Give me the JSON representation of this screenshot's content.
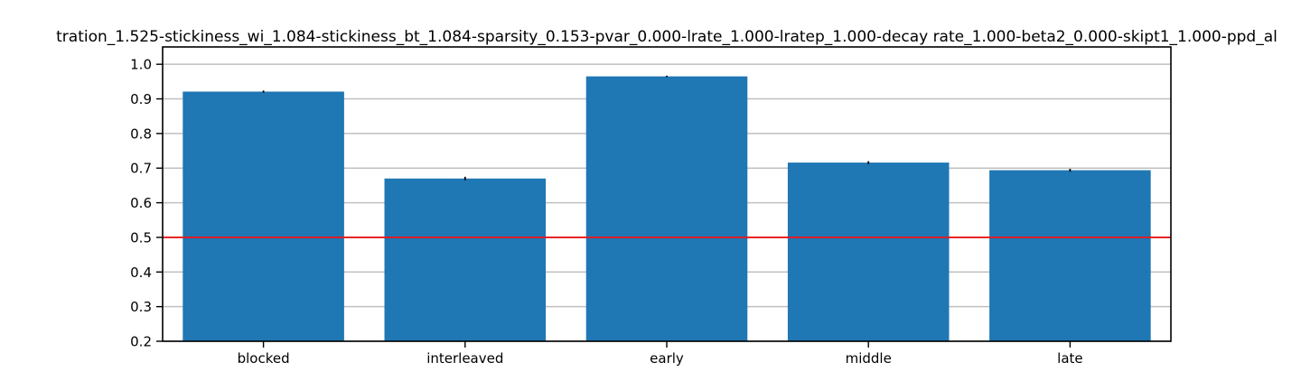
{
  "chart_data": {
    "type": "bar",
    "title": "tration_1.525-stickiness_wi_1.084-stickiness_bt_1.084-sparsity_0.153-pvar_0.000-lrate_1.000-lratep_1.000-decay rate_1.000-beta2_0.000-skipt1_1.000-ppd_al",
    "xlabel": "",
    "ylabel": "",
    "categories": [
      "blocked",
      "interleaved",
      "early",
      "middle",
      "late"
    ],
    "values": [
      0.921,
      0.67,
      0.965,
      0.716,
      0.694
    ],
    "errors": [
      0.003,
      0.005,
      0.002,
      0.004,
      0.004
    ],
    "ylim": [
      0.2,
      1.05
    ],
    "yticks": [
      0.2,
      0.3,
      0.4,
      0.5,
      0.6,
      0.7,
      0.8,
      0.9,
      1.0
    ],
    "ytick_labels": [
      "0.2",
      "0.3",
      "0.4",
      "0.5",
      "0.6",
      "0.7",
      "0.8",
      "0.9",
      "1.0"
    ],
    "reference_line": 0.5,
    "grid": "horizontal",
    "legend": "none",
    "colors": {
      "bar": "#1f77b4",
      "reference_line": "#e8191b",
      "grid": "#c0c0c0",
      "error_bar": "#000000"
    }
  }
}
